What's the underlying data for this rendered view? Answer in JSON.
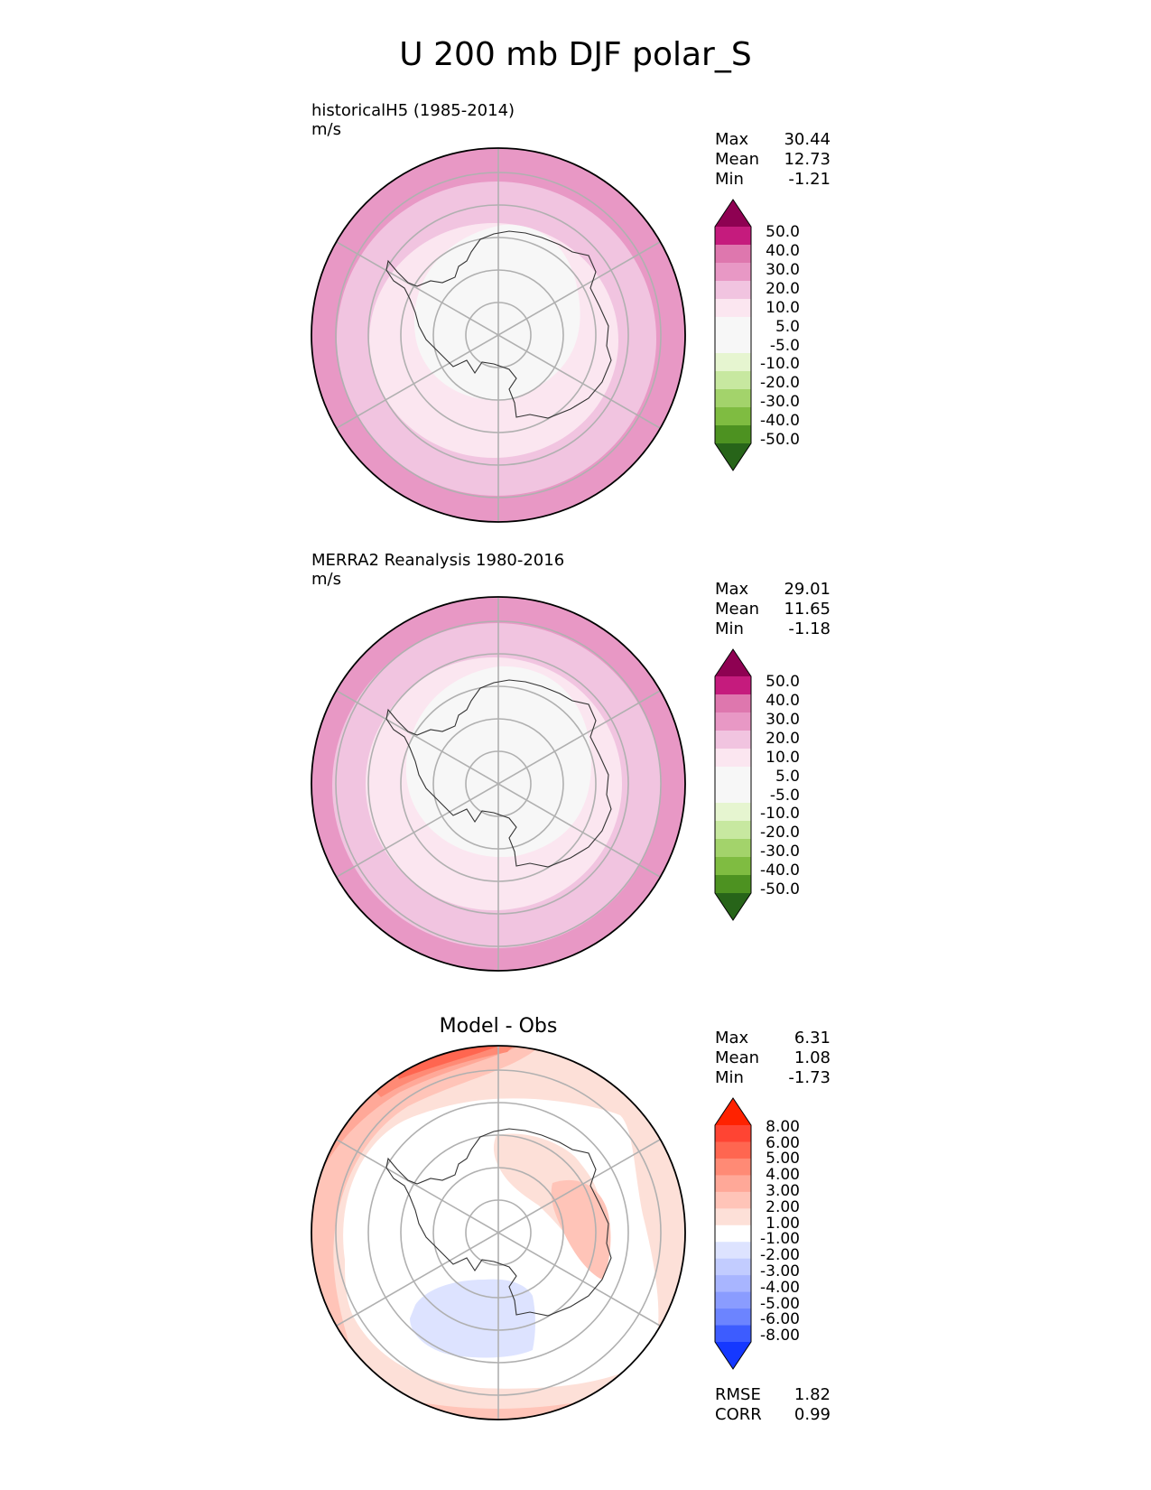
{
  "figure": {
    "title": "U 200 mb DJF polar_S"
  },
  "panels": [
    {
      "id": "test",
      "title": "historicalH5 (1985-2014)",
      "units": "m/s",
      "stats": {
        "max_label": "Max",
        "max": "30.44",
        "mean_label": "Mean",
        "mean": "12.73",
        "min_label": "Min",
        "min": "-1.21"
      },
      "colorbar": {
        "levels": [
          "50.0",
          "40.0",
          "30.0",
          "20.0",
          "10.0",
          "5.0",
          "-5.0",
          "-10.0",
          "-20.0",
          "-30.0",
          "-40.0",
          "-50.0"
        ],
        "colors": [
          "#8e0152",
          "#c51b7d",
          "#de77ae",
          "#f1b6da",
          "#fde0ef",
          "#f7f7f7",
          "#e6f5d0",
          "#b8e186",
          "#7fbc41",
          "#4d9221",
          "#276419",
          "#1e5614",
          "#e6f5d0"
        ]
      }
    },
    {
      "id": "ref",
      "title": "MERRA2 Reanalysis 1980-2016",
      "units": "m/s",
      "stats": {
        "max_label": "Max",
        "max": "29.01",
        "mean_label": "Mean",
        "mean": "11.65",
        "min_label": "Min",
        "min": "-1.18"
      },
      "colorbar": {
        "levels": [
          "50.0",
          "40.0",
          "30.0",
          "20.0",
          "10.0",
          "5.0",
          "-5.0",
          "-10.0",
          "-20.0",
          "-30.0",
          "-40.0",
          "-50.0"
        ]
      }
    },
    {
      "id": "diff",
      "title": "Model - Obs",
      "stats": {
        "max_label": "Max",
        "max": "6.31",
        "mean_label": "Mean",
        "mean": "1.08",
        "min_label": "Min",
        "min": "-1.73"
      },
      "metrics": {
        "rmse_label": "RMSE",
        "rmse": "1.82",
        "corr_label": "CORR",
        "corr": "0.99"
      },
      "colorbar": {
        "levels": [
          "8.00",
          "6.00",
          "5.00",
          "4.00",
          "3.00",
          "2.00",
          "1.00",
          "-1.00",
          "-2.00",
          "-3.00",
          "-4.00",
          "-5.00",
          "-6.00",
          "-8.00"
        ]
      }
    }
  ],
  "palettes": {
    "field": [
      "#8e0152",
      "#c51b7d",
      "#de77ae",
      "#e898c5",
      "#f1c4e0",
      "#fbe6f0",
      "#f7f7f7",
      "#f7f7f7",
      "#e6f5d0",
      "#c7e8a0",
      "#a3d36b",
      "#7fbc41",
      "#4d9221",
      "#276419"
    ],
    "diff": [
      "#ff2200",
      "#ff4433",
      "#ff6650",
      "#ff8a75",
      "#ffa898",
      "#ffc4b8",
      "#fde0d8",
      "#ffffff",
      "#dde3ff",
      "#c2ccff",
      "#a8b5ff",
      "#8a9cff",
      "#6c84ff",
      "#3d5cff",
      "#1538ff"
    ]
  }
}
